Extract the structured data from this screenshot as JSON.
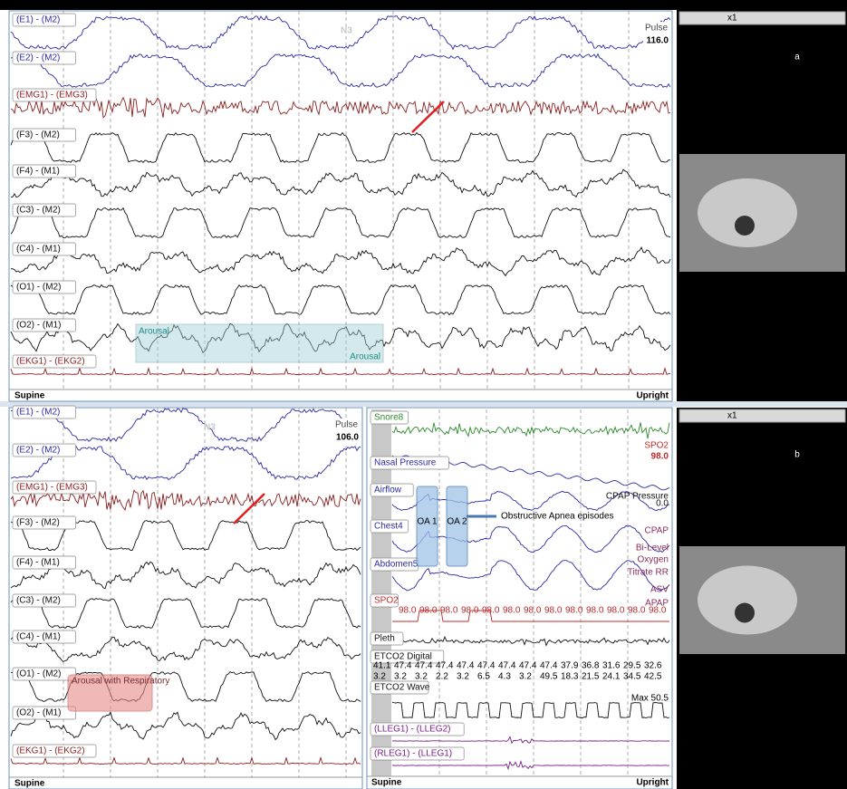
{
  "panels": [
    {
      "label": "a",
      "stage": "N3",
      "pulse_label": "Pulse",
      "pulse_value": "116.0",
      "speed": "x1",
      "channels": [
        "(E1) - (M2)",
        "(E2) - (M2)",
        "(EMG1) - (EMG3)",
        "(F3) - (M2)",
        "(F4) - (M1)",
        "(C3) - (M2)",
        "(C4) - (M1)",
        "(O1) - (M2)",
        "(O2) - (M1)",
        "(EKG1) - (EKG2)"
      ],
      "arousal_labels": [
        "Arousal",
        "Arousal"
      ],
      "position_left": "Supine",
      "position_right": "Upright"
    },
    {
      "label": "b",
      "stage": "N3",
      "pulse_label": "Pulse",
      "pulse_value": "106.0",
      "speed": "x1",
      "channels": [
        "(E1) - (M2)",
        "(E2) - (M2)",
        "(EMG1) - (EMG3)",
        "(F3) - (M2)",
        "(F4) - (M1)",
        "(C3) - (M2)",
        "(C4) - (M1)",
        "(O1) - (M2)",
        "(O2) - (M1)",
        "(EKG1) - (EKG2)"
      ],
      "arousal_labels": [
        "Arousal with Respiratory"
      ],
      "position_left": "Supine",
      "position_right": "Upright",
      "respiratory": {
        "channels": [
          "Snore8",
          "Nasal Pressure",
          "Airflow",
          "Chest4",
          "Abdomen5",
          "SPO2",
          "Pleth",
          "ETCO2 Digital",
          "ETCO2 Wave",
          "(LLEG1) - (LLEG2)",
          "(RLEG1) - (LLEG1)"
        ],
        "spo2_label": "SPO2",
        "spo2_value": "98.0",
        "settings": [
          "CPAP Pressure",
          "0.0",
          "CPAP",
          "Bi-Level",
          "Oxygen",
          "Titrate RR",
          "ASV",
          "APAP"
        ],
        "events": [
          "OA 1",
          "OA 2"
        ],
        "annotation": "Obstructive Apnea episodes",
        "spo2_row": [
          "98.0",
          "98.0",
          "98.0",
          "98.0",
          "98.0",
          "98.0",
          "98.0",
          "98.0",
          "98.0",
          "98.0",
          "98.0",
          "98.0",
          "98.0"
        ],
        "etco2_top": [
          "41.1",
          "47.4",
          "47.4",
          "47.4",
          "47.4",
          "47.4",
          "47.4",
          "47.4",
          "47.4",
          "37.9",
          "36.8",
          "31.6",
          "29.5",
          "32.6"
        ],
        "etco2_bottom": [
          "3.2",
          "3.2",
          "3.2",
          "2.2",
          "3.2",
          "6.5",
          "4.3",
          "3.2",
          "49.5",
          "18.3",
          "21.5",
          "24.1",
          "34.5",
          "42.5"
        ],
        "etco2_max": "Max 50.5",
        "position_left": "Supine",
        "position_right": "Upright"
      }
    }
  ]
}
